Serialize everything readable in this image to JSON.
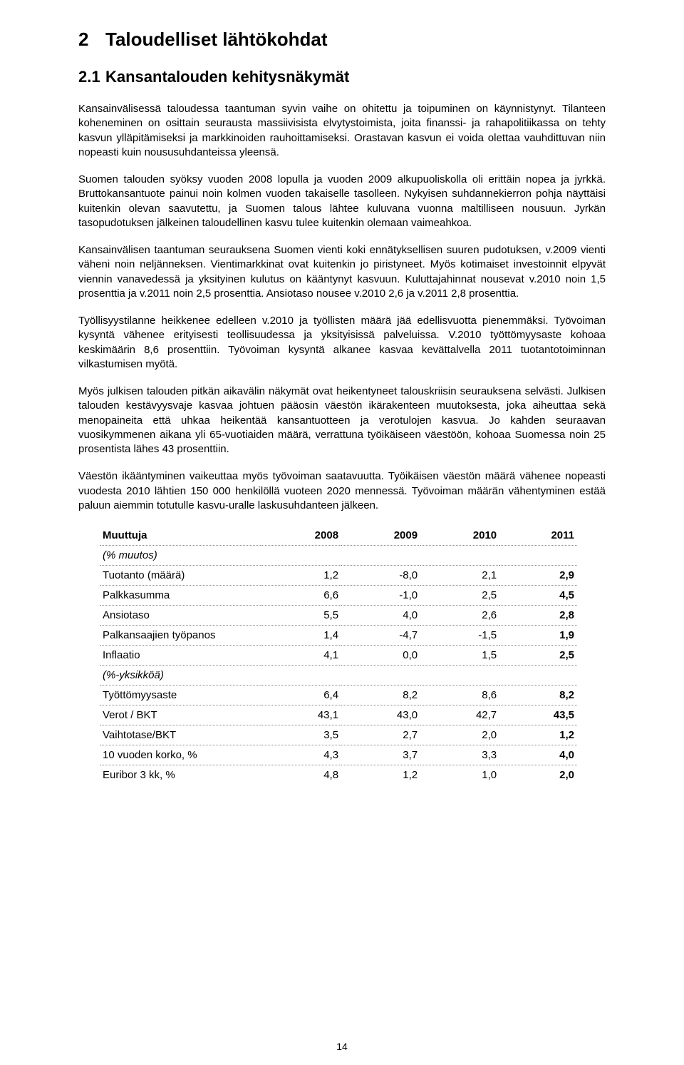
{
  "heading1": {
    "num": "2",
    "text": "Taloudelliset lähtökohdat"
  },
  "heading2": {
    "num": "2.1",
    "text": "Kansantalouden kehitysnäkymät"
  },
  "paragraphs": [
    "Kansainvälisessä taloudessa taantuman syvin vaihe on ohitettu ja toipuminen on käynnistynyt. Tilanteen koheneminen on osittain seurausta massiivisista elvytystoimista, joita finanssi- ja rahapolitiikassa on tehty kasvun ylläpitämiseksi ja markkinoiden rauhoittamiseksi. Orastavan kasvun ei voida olettaa vauhdittuvan niin nopeasti kuin noususuhdanteissa yleensä.",
    "Suomen talouden syöksy vuoden 2008 lopulla ja vuoden 2009 alkupuoliskolla oli erittäin nopea ja jyrkkä. Bruttokansantuote painui noin kolmen vuoden takaiselle tasolleen. Nykyisen suhdannekierron pohja näyttäisi kuitenkin olevan saavutettu, ja Suomen talous lähtee kuluvana vuonna maltilliseen nousuun. Jyrkän tasopudotuksen jälkeinen taloudellinen kasvu tulee kuitenkin olemaan vaimeahkoa.",
    "Kansainvälisen taantuman seurauksena Suomen vienti koki ennätyksellisen suuren pudotuksen, v.2009 vienti väheni noin neljänneksen. Vientimarkkinat ovat kuitenkin jo piristyneet. Myös kotimaiset investoinnit elpyvät viennin vanavedessä ja yksityinen kulutus on kääntynyt kasvuun. Kuluttajahinnat nousevat v.2010 noin 1,5 prosenttia ja v.2011 noin 2,5 prosenttia.  Ansiotaso nousee v.2010 2,6 ja v.2011  2,8 prosenttia.",
    "Työllisyystilanne heikkenee edelleen v.2010 ja työllisten määrä jää edellisvuotta pienemmäksi. Työvoiman kysyntä vähenee erityisesti teollisuudessa ja yksityisissä palveluissa. V.2010 työttömyysaste kohoaa keskimäärin 8,6 prosenttiin. Työvoiman kysyntä alkanee kasvaa kevättalvella 2011 tuotantotoiminnan vilkastumisen myötä.",
    "Myös julkisen talouden pitkän aikavälin näkymät ovat heikentyneet talouskriisin seurauksena selvästi. Julkisen talouden kestävyysvaje kasvaa johtuen pääosin väestön ikärakenteen muutoksesta, joka aiheuttaa sekä menopaineita että uhkaa heikentää kansantuotteen ja verotulojen kasvua. Jo kahden seuraavan vuosikymmenen aikana yli 65-vuotiaiden määrä, verrattuna työikäiseen väestöön, kohoaa Suomessa noin 25 prosentista lähes 43 prosenttiin.",
    "Väestön ikääntyminen vaikeuttaa myös työvoiman saatavuutta. Työikäisen väestön määrä vähenee nopeasti vuodesta 2010 lähtien 150 000 henkilöllä vuoteen 2020 mennessä. Työvoiman määrän vähentyminen estää paluun aiemmin totutulle kasvu-uralle laskusuhdanteen jälkeen."
  ],
  "table": {
    "header_label": "Muuttuja",
    "columns": [
      "2008",
      "2009",
      "2010",
      "2011"
    ],
    "section1_label": "(% muutos)",
    "section2_label": "(%-yksikköä)",
    "rows1": [
      {
        "label": "Tuotanto (määrä)",
        "v": [
          "1,2",
          "-8,0",
          "2,1",
          "2,9"
        ]
      },
      {
        "label": "Palkkasumma",
        "v": [
          "6,6",
          "-1,0",
          "2,5",
          "4,5"
        ]
      },
      {
        "label": "Ansiotaso",
        "v": [
          "5,5",
          "4,0",
          "2,6",
          "2,8"
        ]
      },
      {
        "label": "Palkansaajien työpanos",
        "v": [
          "1,4",
          "-4,7",
          "-1,5",
          "1,9"
        ]
      },
      {
        "label": "Inflaatio",
        "v": [
          "4,1",
          "0,0",
          "1,5",
          "2,5"
        ]
      }
    ],
    "rows2": [
      {
        "label": "Työttömyysaste",
        "v": [
          "6,4",
          "8,2",
          "8,6",
          "8,2"
        ]
      },
      {
        "label": "Verot / BKT",
        "v": [
          "43,1",
          "43,0",
          "42,7",
          "43,5"
        ]
      },
      {
        "label": "Vaihtotase/BKT",
        "v": [
          "3,5",
          "2,7",
          "2,0",
          "1,2"
        ]
      },
      {
        "label": "10 vuoden korko, %",
        "v": [
          "4,3",
          "3,7",
          "3,3",
          "4,0"
        ]
      },
      {
        "label": "Euribor 3 kk, %",
        "v": [
          "4,8",
          "1,2",
          "1,0",
          "2,0"
        ]
      }
    ]
  },
  "pageNumber": "14"
}
